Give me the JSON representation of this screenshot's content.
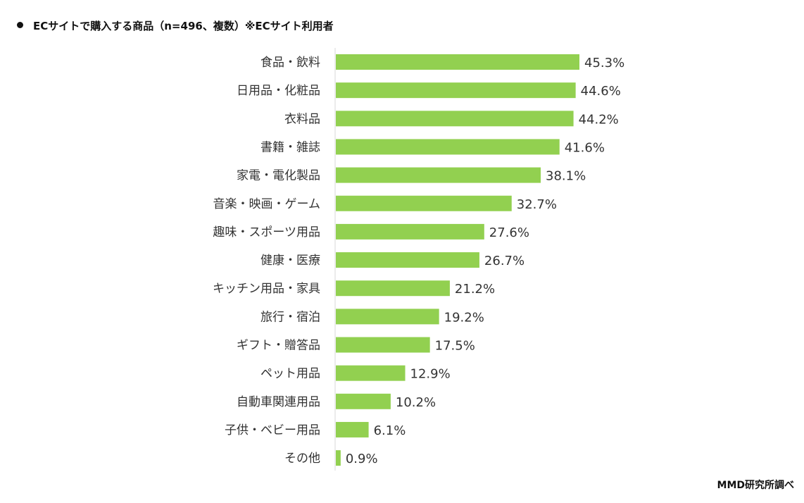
{
  "chart_data": {
    "type": "bar",
    "orientation": "horizontal",
    "title": "ECサイトで購入する商品（n=496、複数）※ECサイト利用者",
    "source": "MMD研究所調べ",
    "categories": [
      "食品・飲料",
      "日用品・化粧品",
      "衣料品",
      "書籍・雑誌",
      "家電・電化製品",
      "音楽・映画・ゲーム",
      "趣味・スポーツ用品",
      "健康・医療",
      "キッチン用品・家具",
      "旅行・宿泊",
      "ギフト・贈答品",
      "ペット用品",
      "自動車関連用品",
      "子供・ベビー用品",
      "その他"
    ],
    "values": [
      45.3,
      44.6,
      44.2,
      41.6,
      38.1,
      32.7,
      27.6,
      26.7,
      21.2,
      19.2,
      17.5,
      12.9,
      10.2,
      6.1,
      0.9
    ],
    "labels": [
      "45.3%",
      "44.6%",
      "44.2%",
      "41.6%",
      "38.1%",
      "32.7%",
      "27.6%",
      "26.7%",
      "21.2%",
      "19.2%",
      "17.5%",
      "12.9%",
      "10.2%",
      "6.1%",
      "0.9%"
    ],
    "unit": "%",
    "xlim": [
      0,
      50
    ],
    "grid": false,
    "legend": "none",
    "bar_color": "#92d050"
  }
}
